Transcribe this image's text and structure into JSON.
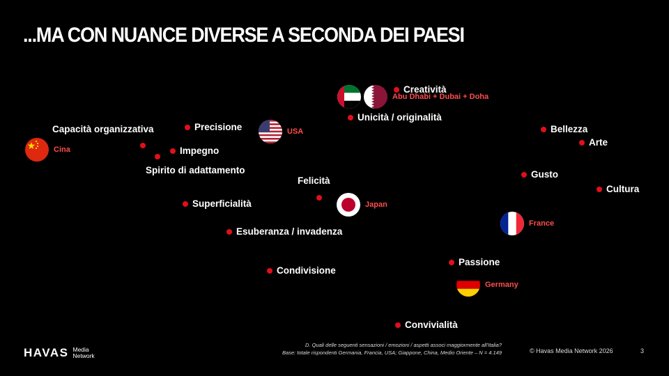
{
  "slide": {
    "title": "...MA CON NUANCE DIVERSE A SECONDA DEI PAESI"
  },
  "attributes": {
    "creativita": "Creatività",
    "unicita": "Unicità / originalità",
    "capacita": "Capacità organizzativa",
    "precisione": "Precisione",
    "impegno": "Impegno",
    "spirito": "Spirito di adattamento",
    "felicita": "Felicità",
    "superficialita": "Superficialità",
    "esuberanza": "Esuberanza / invadenza",
    "condivisione": "Condivisione",
    "bellezza": "Bellezza",
    "arte": "Arte",
    "gusto": "Gusto",
    "cultura": "Cultura",
    "passione": "Passione",
    "convivialita": "Convivialità"
  },
  "countries": {
    "china": "Cina",
    "usa": "USA",
    "middle_east": "Abu Dhabi + Dubai + Doha",
    "japan": "Japan",
    "france": "France",
    "germany": "Germany"
  },
  "colors": {
    "background": "#000000",
    "dot": "#e0101a",
    "country_label": "#ff4d4d",
    "text": "#ffffff"
  },
  "footer": {
    "question": "D. Quali delle seguenti sensazioni / emozioni / aspetti associ maggiormente all'Italia?",
    "base": "Base: totale rispondenti Germania, Francia, USA; Giappone, China, Medio Oriente – N = 4.149",
    "logo_main": "HAVAS",
    "logo_sub_1": "Media",
    "logo_sub_2": "Network",
    "copyright": "© Havas Media Network 2026",
    "page": "3"
  }
}
